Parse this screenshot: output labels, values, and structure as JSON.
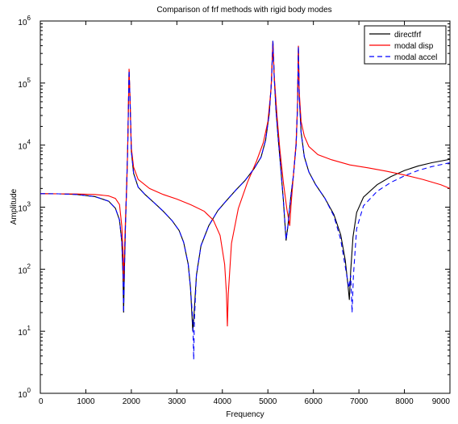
{
  "chart_data": {
    "type": "line",
    "title": "Comparison of frf methods with rigid body modes",
    "xlabel": "Frequency",
    "ylabel": "Amplitude",
    "xlim": [
      0,
      9000
    ],
    "ylim": [
      1,
      1000000
    ],
    "yscale": "log",
    "grid": false,
    "legend_position": "top-right",
    "x_ticks": [
      "0",
      "1000",
      "2000",
      "3000",
      "4000",
      "5000",
      "6000",
      "7000",
      "8000",
      "9000"
    ],
    "y_ticks": [
      {
        "base": "10",
        "exp": "0"
      },
      {
        "base": "10",
        "exp": "1"
      },
      {
        "base": "10",
        "exp": "2"
      },
      {
        "base": "10",
        "exp": "3"
      },
      {
        "base": "10",
        "exp": "4"
      },
      {
        "base": "10",
        "exp": "5"
      },
      {
        "base": "10",
        "exp": "6"
      }
    ],
    "series": [
      {
        "name": "directfrf",
        "color": "#000000",
        "dash": "solid",
        "points": [
          [
            0,
            1650
          ],
          [
            400,
            1640
          ],
          [
            800,
            1600
          ],
          [
            1200,
            1480
          ],
          [
            1500,
            1250
          ],
          [
            1650,
            960
          ],
          [
            1740,
            620
          ],
          [
            1790,
            280
          ],
          [
            1815,
            90
          ],
          [
            1830,
            20
          ],
          [
            1848,
            95
          ],
          [
            1870,
            480
          ],
          [
            1890,
            1500
          ],
          [
            1920,
            9000
          ],
          [
            1950,
            160000
          ],
          [
            1970,
            60000
          ],
          [
            2000,
            8000
          ],
          [
            2050,
            3500
          ],
          [
            2150,
            2100
          ],
          [
            2300,
            1600
          ],
          [
            2500,
            1180
          ],
          [
            2700,
            860
          ],
          [
            2900,
            600
          ],
          [
            3050,
            420
          ],
          [
            3150,
            270
          ],
          [
            3250,
            120
          ],
          [
            3300,
            50
          ],
          [
            3350,
            10
          ],
          [
            3380,
            20
          ],
          [
            3430,
            80
          ],
          [
            3530,
            240
          ],
          [
            3700,
            500
          ],
          [
            3900,
            880
          ],
          [
            4100,
            1300
          ],
          [
            4300,
            1900
          ],
          [
            4500,
            2700
          ],
          [
            4700,
            4200
          ],
          [
            4850,
            6400
          ],
          [
            4950,
            12000
          ],
          [
            5030,
            32000
          ],
          [
            5080,
            110000
          ],
          [
            5110,
            480000
          ],
          [
            5140,
            120000
          ],
          [
            5180,
            35000
          ],
          [
            5230,
            12000
          ],
          [
            5280,
            4500
          ],
          [
            5340,
            1300
          ],
          [
            5400,
            290
          ],
          [
            5440,
            500
          ],
          [
            5500,
            1400
          ],
          [
            5560,
            3200
          ],
          [
            5620,
            10000
          ],
          [
            5650,
            40000
          ],
          [
            5670,
            390000
          ],
          [
            5690,
            60000
          ],
          [
            5730,
            16000
          ],
          [
            5800,
            6500
          ],
          [
            5900,
            3700
          ],
          [
            6050,
            2300
          ],
          [
            6250,
            1400
          ],
          [
            6450,
            760
          ],
          [
            6600,
            360
          ],
          [
            6700,
            140
          ],
          [
            6760,
            55
          ],
          [
            6790,
            32
          ],
          [
            6820,
            95
          ],
          [
            6870,
            330
          ],
          [
            6950,
            820
          ],
          [
            7100,
            1450
          ],
          [
            7400,
            2300
          ],
          [
            7700,
            3100
          ],
          [
            8000,
            3900
          ],
          [
            8300,
            4600
          ],
          [
            8600,
            5200
          ],
          [
            9000,
            5900
          ]
        ]
      },
      {
        "name": "modal disp",
        "color": "#ff0000",
        "dash": "solid",
        "points": [
          [
            0,
            1650
          ],
          [
            400,
            1640
          ],
          [
            800,
            1630
          ],
          [
            1200,
            1600
          ],
          [
            1500,
            1520
          ],
          [
            1650,
            1380
          ],
          [
            1740,
            1100
          ],
          [
            1790,
            500
          ],
          [
            1815,
            200
          ],
          [
            1830,
            65
          ],
          [
            1850,
            200
          ],
          [
            1875,
            800
          ],
          [
            1900,
            2200
          ],
          [
            1920,
            9000
          ],
          [
            1950,
            170000
          ],
          [
            1970,
            60000
          ],
          [
            2000,
            9000
          ],
          [
            2050,
            4400
          ],
          [
            2150,
            2800
          ],
          [
            2400,
            2000
          ],
          [
            2700,
            1600
          ],
          [
            3000,
            1350
          ],
          [
            3300,
            1100
          ],
          [
            3600,
            860
          ],
          [
            3800,
            620
          ],
          [
            3950,
            350
          ],
          [
            4050,
            120
          ],
          [
            4090,
            40
          ],
          [
            4110,
            12
          ],
          [
            4130,
            40
          ],
          [
            4200,
            260
          ],
          [
            4350,
            950
          ],
          [
            4550,
            2500
          ],
          [
            4750,
            5500
          ],
          [
            4900,
            11000
          ],
          [
            5000,
            24000
          ],
          [
            5070,
            80000
          ],
          [
            5110,
            470000
          ],
          [
            5140,
            130000
          ],
          [
            5200,
            30000
          ],
          [
            5260,
            9000
          ],
          [
            5340,
            2500
          ],
          [
            5420,
            900
          ],
          [
            5480,
            500
          ],
          [
            5510,
            1100
          ],
          [
            5560,
            3200
          ],
          [
            5620,
            11000
          ],
          [
            5650,
            40000
          ],
          [
            5670,
            400000
          ],
          [
            5690,
            70000
          ],
          [
            5730,
            24000
          ],
          [
            5800,
            14000
          ],
          [
            5900,
            9500
          ],
          [
            6100,
            7000
          ],
          [
            6400,
            5800
          ],
          [
            6800,
            4800
          ],
          [
            7200,
            4300
          ],
          [
            7600,
            3800
          ],
          [
            8000,
            3300
          ],
          [
            8400,
            2800
          ],
          [
            8800,
            2300
          ],
          [
            9000,
            2000
          ]
        ]
      },
      {
        "name": "modal accel",
        "color": "#0000ff",
        "dash": "dashed",
        "points": [
          [
            0,
            1650
          ],
          [
            400,
            1640
          ],
          [
            800,
            1600
          ],
          [
            1200,
            1480
          ],
          [
            1500,
            1250
          ],
          [
            1650,
            960
          ],
          [
            1740,
            620
          ],
          [
            1790,
            280
          ],
          [
            1815,
            90
          ],
          [
            1830,
            20
          ],
          [
            1848,
            95
          ],
          [
            1870,
            480
          ],
          [
            1890,
            1500
          ],
          [
            1920,
            9000
          ],
          [
            1950,
            160000
          ],
          [
            1970,
            60000
          ],
          [
            2000,
            8000
          ],
          [
            2050,
            3500
          ],
          [
            2150,
            2100
          ],
          [
            2300,
            1600
          ],
          [
            2500,
            1180
          ],
          [
            2700,
            860
          ],
          [
            2900,
            600
          ],
          [
            3050,
            420
          ],
          [
            3150,
            270
          ],
          [
            3250,
            120
          ],
          [
            3300,
            50
          ],
          [
            3350,
            15
          ],
          [
            3370,
            3.5
          ],
          [
            3385,
            15
          ],
          [
            3430,
            80
          ],
          [
            3530,
            240
          ],
          [
            3700,
            500
          ],
          [
            3900,
            880
          ],
          [
            4100,
            1300
          ],
          [
            4300,
            1900
          ],
          [
            4500,
            2700
          ],
          [
            4700,
            4200
          ],
          [
            4850,
            6400
          ],
          [
            4950,
            12000
          ],
          [
            5030,
            32000
          ],
          [
            5080,
            110000
          ],
          [
            5110,
            480000
          ],
          [
            5140,
            120000
          ],
          [
            5180,
            35000
          ],
          [
            5230,
            12000
          ],
          [
            5280,
            4500
          ],
          [
            5340,
            1300
          ],
          [
            5400,
            300
          ],
          [
            5440,
            500
          ],
          [
            5500,
            1400
          ],
          [
            5560,
            3200
          ],
          [
            5620,
            10000
          ],
          [
            5650,
            40000
          ],
          [
            5670,
            390000
          ],
          [
            5690,
            60000
          ],
          [
            5730,
            16000
          ],
          [
            5800,
            6500
          ],
          [
            5900,
            3700
          ],
          [
            6050,
            2300
          ],
          [
            6250,
            1400
          ],
          [
            6450,
            720
          ],
          [
            6600,
            300
          ],
          [
            6700,
            110
          ],
          [
            6780,
            50
          ],
          [
            6820,
            80
          ],
          [
            6850,
            20
          ],
          [
            6880,
            80
          ],
          [
            6950,
            450
          ],
          [
            7100,
            1050
          ],
          [
            7400,
            1800
          ],
          [
            7700,
            2500
          ],
          [
            8000,
            3200
          ],
          [
            8300,
            3900
          ],
          [
            8600,
            4500
          ],
          [
            9000,
            5200
          ]
        ]
      }
    ]
  }
}
